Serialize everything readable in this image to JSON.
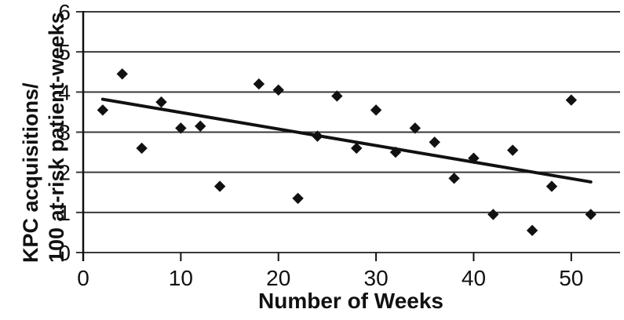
{
  "figure": {
    "background_color": "#ffffff",
    "ink_color": "#111111"
  },
  "chart_data": {
    "type": "scatter",
    "title": "",
    "xlabel": "Number of Weeks",
    "ylabel_line1": "KPC acquisitions/",
    "ylabel_line2": "100 at-risk patient-weeks",
    "xlim": [
      0,
      55
    ],
    "ylim": [
      0,
      6
    ],
    "x_ticks": [
      0,
      10,
      20,
      30,
      40,
      50
    ],
    "y_ticks": [
      0,
      1,
      2,
      3,
      4,
      5,
      6
    ],
    "grid": "horizontal",
    "legend": "none",
    "marker": "diamond",
    "marker_color": "#111111",
    "trend_color": "#111111",
    "grid_color": "#3a3a3a",
    "axis_color": "#111111",
    "points": [
      [
        2,
        3.55
      ],
      [
        4,
        4.45
      ],
      [
        6,
        2.6
      ],
      [
        8,
        3.75
      ],
      [
        10,
        3.1
      ],
      [
        12,
        3.15
      ],
      [
        14,
        1.65
      ],
      [
        18,
        4.2
      ],
      [
        20,
        4.05
      ],
      [
        22,
        1.35
      ],
      [
        24,
        2.9
      ],
      [
        26,
        3.9
      ],
      [
        28,
        2.6
      ],
      [
        30,
        3.55
      ],
      [
        32,
        2.5
      ],
      [
        34,
        3.1
      ],
      [
        36,
        2.75
      ],
      [
        38,
        1.85
      ],
      [
        40,
        2.35
      ],
      [
        42,
        0.95
      ],
      [
        44,
        2.55
      ],
      [
        46,
        0.55
      ],
      [
        48,
        1.65
      ],
      [
        50,
        3.8
      ],
      [
        52,
        0.95
      ]
    ],
    "trendline": {
      "x1": 2,
      "y1": 3.82,
      "x2": 52,
      "y2": 1.76
    }
  }
}
